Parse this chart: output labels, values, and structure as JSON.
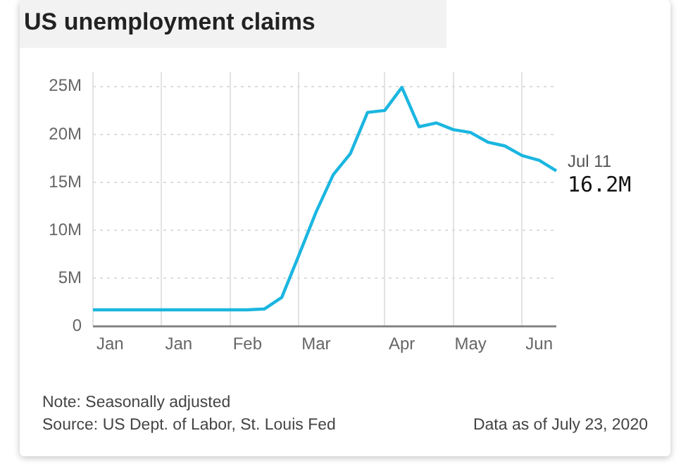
{
  "chart_data": {
    "type": "line",
    "title": "US unemployment claims",
    "categories": [
      null,
      "Jan",
      null,
      null,
      null,
      "Jan",
      null,
      null,
      null,
      "Feb",
      null,
      null,
      null,
      "Mar",
      null,
      null,
      null,
      null,
      "Apr",
      null,
      null,
      null,
      "May",
      null,
      null,
      null,
      "Jun",
      null
    ],
    "series": [
      {
        "color": "#1bb6e0",
        "values": [
          1.7,
          1.7,
          1.7,
          1.7,
          1.7,
          1.7,
          1.7,
          1.7,
          1.7,
          1.7,
          1.8,
          3.0,
          7.4,
          11.9,
          15.8,
          18.0,
          22.3,
          22.5,
          24.9,
          20.8,
          21.2,
          20.5,
          20.2,
          19.2,
          18.8,
          17.8,
          17.3,
          16.2
        ]
      }
    ],
    "ylim": [
      0,
      26.5
    ],
    "yticks": [
      {
        "value": 0,
        "label": "0"
      },
      {
        "value": 5,
        "label": "5M"
      },
      {
        "value": 10,
        "label": "10M"
      },
      {
        "value": 15,
        "label": "15M"
      },
      {
        "value": 20,
        "label": "20M"
      },
      {
        "value": 25,
        "label": "25M"
      }
    ],
    "grid": true,
    "legend": false,
    "marker": "none",
    "line_style": "solid",
    "annotations": [
      "Jul 11",
      "16.2M",
      "Note: Seasonally adjusted",
      "Source: US Dept. of Labor, St. Louis Fed",
      "Data as of July 23, 2020"
    ]
  }
}
